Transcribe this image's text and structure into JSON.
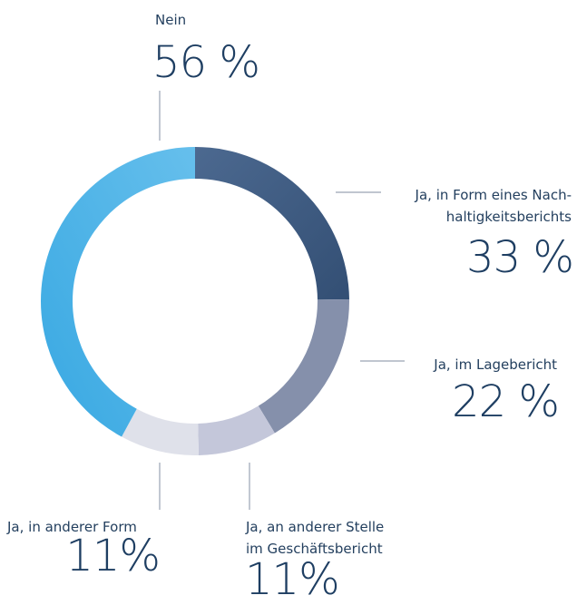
{
  "chart_data": {
    "type": "donut",
    "categories": [
      "Ja, in Form eines Nach-\nhaltigkeitsberichts",
      "Ja, im Lagebericht",
      "Ja, an anderer Stelle\nim Geschäftsbericht",
      "Ja, in anderer Form",
      "Nein"
    ],
    "values": [
      33,
      22,
      11,
      11,
      56
    ],
    "value_labels": [
      "33 %",
      "22 %",
      "11%",
      "11%",
      "56 %"
    ],
    "colors": [
      "#3b5a82",
      "#8590ab",
      "#c4c7da",
      "#dfe1ea",
      "#4db2e6"
    ]
  }
}
